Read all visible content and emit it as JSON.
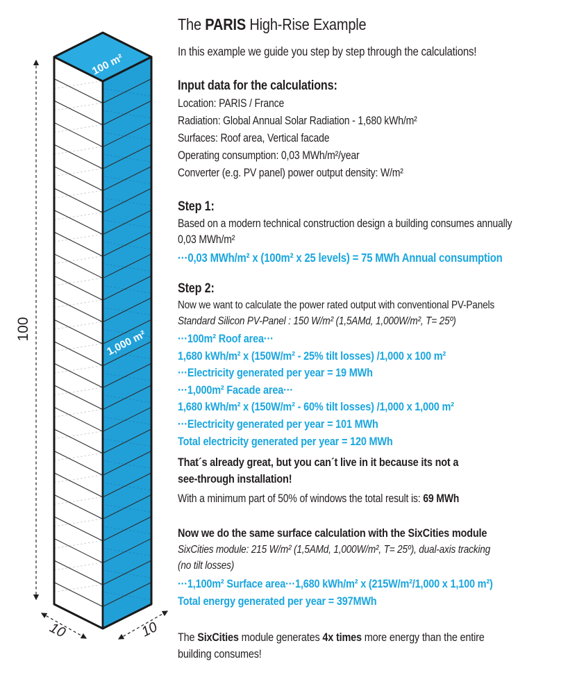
{
  "colors": {
    "accent_text": "#1ba6de",
    "building_side": "#21a0d8",
    "building_top": "#2aabe2",
    "ink": "#231f20"
  },
  "diagram": {
    "levels": 25,
    "roof_area_label": "100 m²",
    "facade_area_label": "1,000 m²",
    "height_label": "100",
    "width_label": "10",
    "depth_label": "10"
  },
  "content": {
    "title_runs": [
      {
        "t": "The ",
        "b": false
      },
      {
        "t": "PARIS",
        "b": true
      },
      {
        "t": " High-Rise Example",
        "b": false
      }
    ],
    "subtitle": "In this example we guide you step by step through the calculations!",
    "input": {
      "heading": "Input data for the calculations:",
      "lines": [
        "Location: PARIS / France",
        "Radiation: Global Annual Solar Radiation  - 1,680 kWh/m²",
        "Surfaces: Roof area, Vertical facade",
        "Operating consumption: 0,03 MWh/m²/year",
        "Converter (e.g. PV panel) power output density: W/m²"
      ]
    },
    "step1": {
      "heading": "Step 1:",
      "body_lines": [
        "Based on a modern technical construction design a building consumes annually",
        "0,03 MWh/m²"
      ],
      "formula": "···0,03 MWh/m² x (100m² x 25 levels) = 75 MWh Annual consumption"
    },
    "step2": {
      "heading": "Step 2:",
      "body": "Now we want to calculate the power rated output with conventional PV-Panels",
      "panel_spec": "Standard Silicon PV-Panel : 150 W/m² (1,5AMd, 1,000W/m², T= 25º)",
      "roof": [
        "···100m² Roof area···",
        "1,680 kWh/m² x (150W/m² - 25% tilt losses) /1,000 x 100 m²",
        "···Electricity generated per year = 19 MWh"
      ],
      "facade": [
        "···1,000m² Facade area···",
        "1,680 kWh/m² x (150W/m² - 60% tilt losses) /1,000 x 1,000 m²",
        "···Electricity generated per year = 101 MWh"
      ],
      "total": "Total electricity generated per year = 120 MWh",
      "caveat_lines": [
        "That´s already great, but you can´t live in it because its not a",
        "see-through installation!"
      ],
      "windows_runs": [
        {
          "t": "With a minimum part of 50% of windows the total result is: ",
          "b": false
        },
        {
          "t": "69 MWh",
          "b": true
        }
      ]
    },
    "sixcities": {
      "heading": "Now we do the same surface calculation with the SixCities module",
      "spec_lines": [
        "SixCities module: 215 W/m² (1,5AMd, 1,000W/m², T= 25º), dual-axis tracking",
        "(no tilt losses)"
      ],
      "formula": "···1,100m² Surface area···1,680 kWh/m² x (215W/m²/1,000 x 1,100 m²)",
      "total": "Total energy generated per year = 397MWh",
      "conclusion_line1_runs": [
        {
          "t": "The ",
          "b": false
        },
        {
          "t": "SixCities",
          "b": true
        },
        {
          "t": " module generates ",
          "b": false
        },
        {
          "t": "4x times",
          "b": true
        },
        {
          "t": " more energy than the entire",
          "b": false
        }
      ],
      "conclusion_line2": "building consumes!"
    }
  }
}
